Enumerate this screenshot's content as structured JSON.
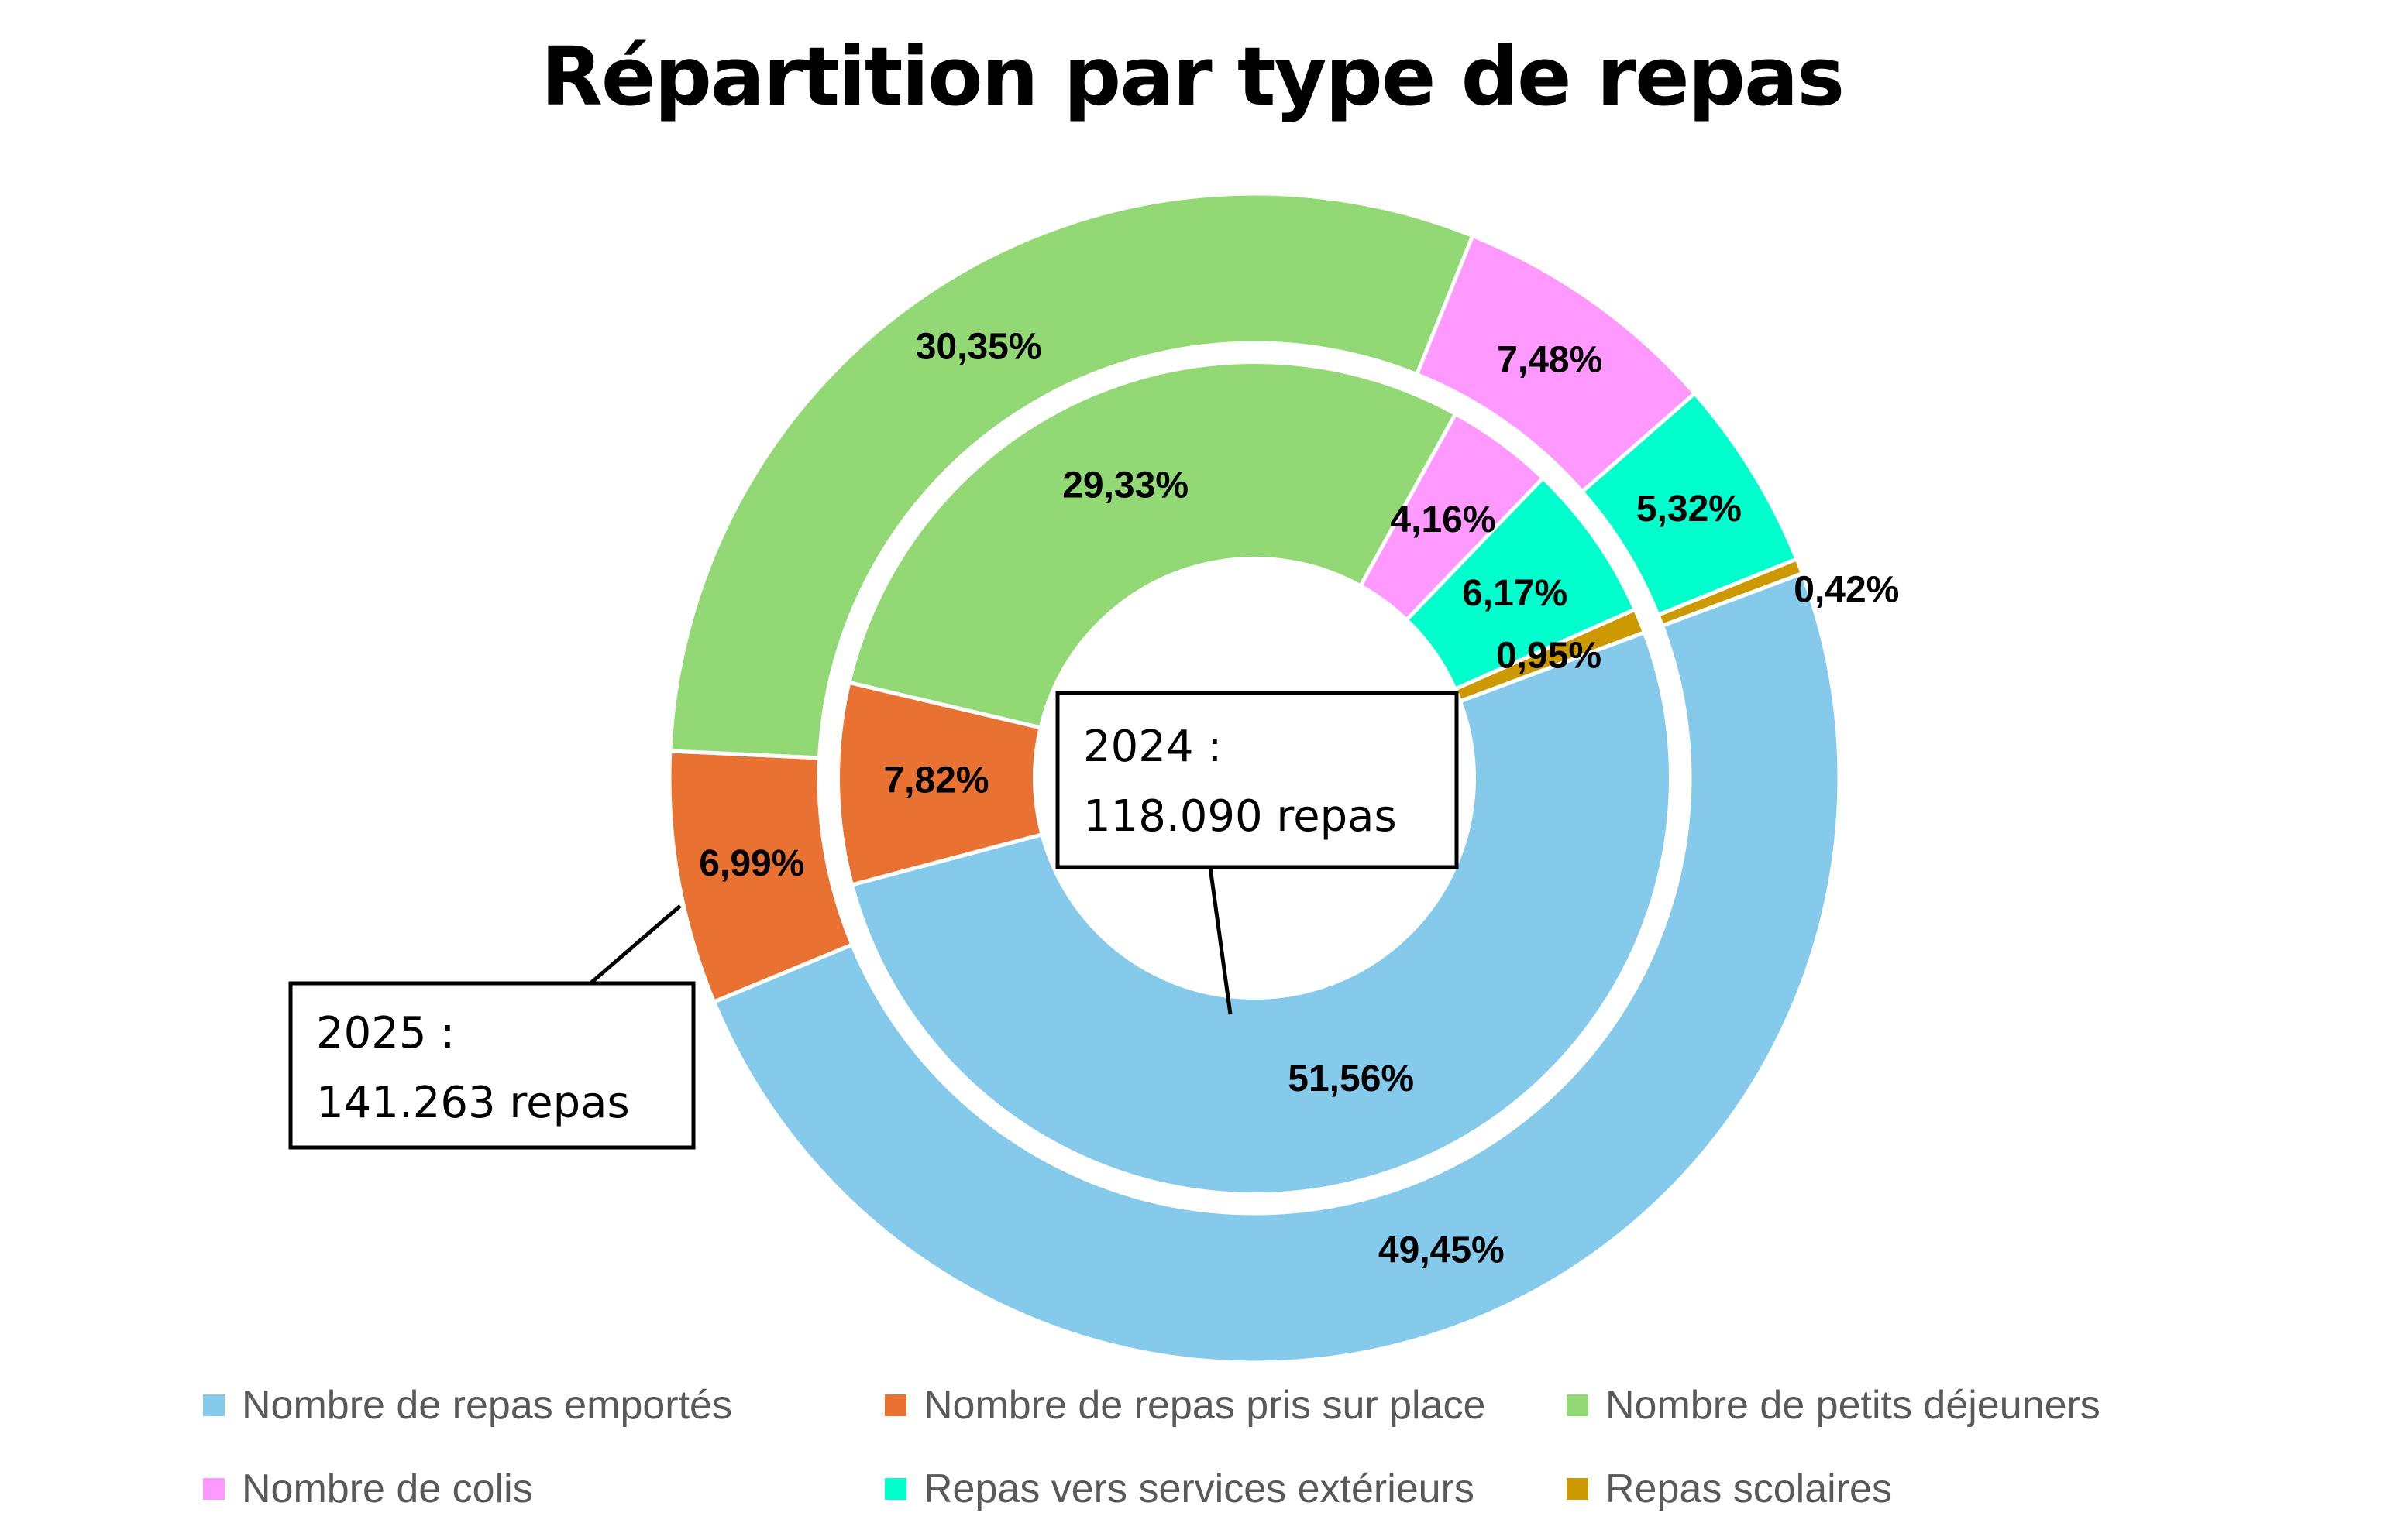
{
  "chart_data": {
    "type": "donut",
    "title": "Répartition par type de repas",
    "categories": [
      "Nombre de repas emportés",
      "Nombre de repas pris sur place",
      "Nombre de petits déjeuners",
      "Nombre de colis",
      "Repas vers services extérieurs",
      "Repas scolaires"
    ],
    "colors": [
      "#85CAEB",
      "#E97132",
      "#92D875",
      "#FF99FF",
      "#00FFCC",
      "#CC9900"
    ],
    "series": [
      {
        "ring": "outer",
        "values": [
          49.45,
          6.99,
          30.35,
          7.48,
          5.32,
          0.42
        ],
        "labels": [
          "49,45%",
          "6,99%",
          "30,35%",
          "7,48%",
          "5,32%",
          "0,42%"
        ]
      },
      {
        "ring": "inner",
        "values": [
          51.56,
          7.82,
          29.33,
          4.16,
          6.17,
          0.95
        ],
        "labels": [
          "51,56%",
          "7,82%",
          "29,33%",
          "4,16%",
          "6,17%",
          "0,95%"
        ]
      }
    ],
    "annotations": [
      {
        "ring": "outer",
        "line1": "2025 :",
        "line2": "141.263 repas"
      },
      {
        "ring": "inner",
        "line1": "2024 :",
        "line2": "118.090 repas"
      }
    ],
    "legend_position": "bottom"
  }
}
